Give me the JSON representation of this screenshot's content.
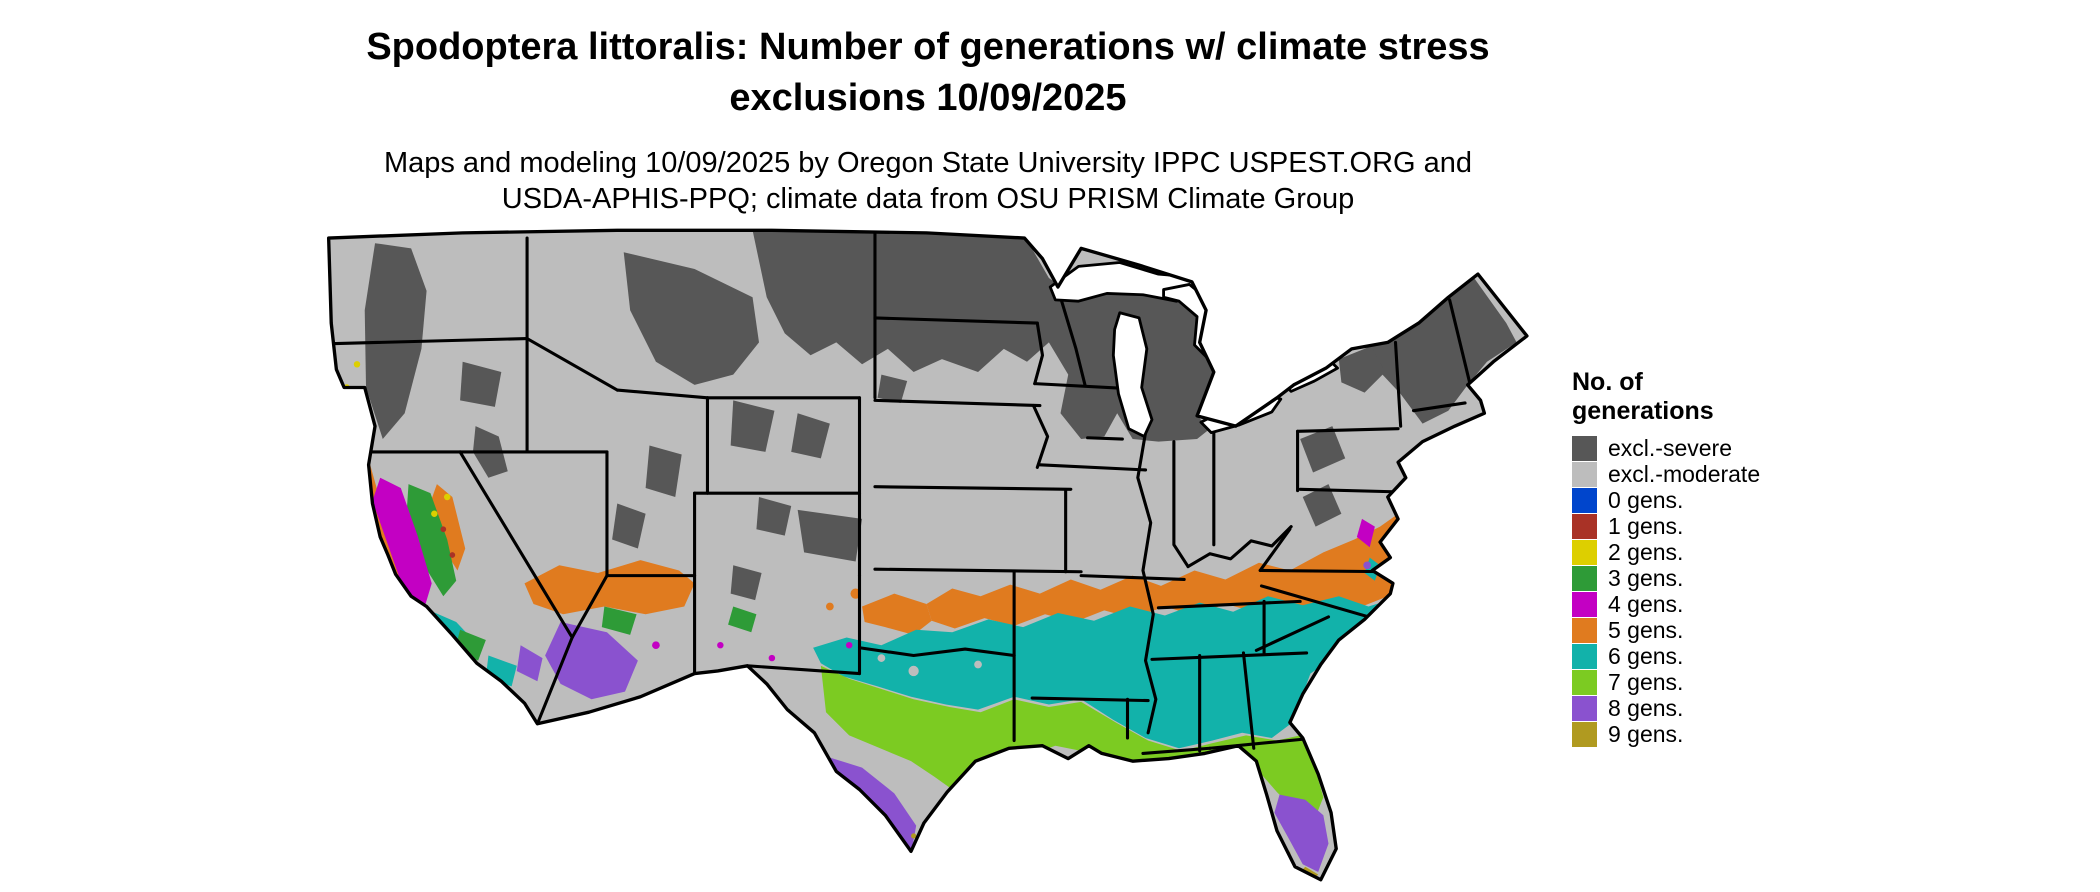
{
  "title": {
    "line1": "Spodoptera littoralis: Number of generations w/ climate stress",
    "line2": "exclusions 10/09/2025"
  },
  "subtitle": {
    "line1": "Maps and modeling 10/09/2025 by Oregon State University IPPC USPEST.ORG and",
    "line2": "USDA-APHIS-PPQ; climate data from OSU PRISM Climate Group"
  },
  "legend": {
    "title_line1": "No. of",
    "title_line2": "generations",
    "items": [
      {
        "key": "excl-severe",
        "label": "excl.-severe",
        "color": "#575757"
      },
      {
        "key": "excl-moderate",
        "label": "excl.-moderate",
        "color": "#bdbdbd"
      },
      {
        "key": "gens-0",
        "label": "0 gens.",
        "color": "#0045cc"
      },
      {
        "key": "gens-1",
        "label": "1 gens.",
        "color": "#a93226"
      },
      {
        "key": "gens-2",
        "label": "2 gens.",
        "color": "#ddcf00"
      },
      {
        "key": "gens-3",
        "label": "3 gens.",
        "color": "#2e9b37"
      },
      {
        "key": "gens-4",
        "label": "4 gens.",
        "color": "#c300c3"
      },
      {
        "key": "gens-5",
        "label": "5 gens.",
        "color": "#e07b1f"
      },
      {
        "key": "gens-6",
        "label": "6 gens.",
        "color": "#12b2aa"
      },
      {
        "key": "gens-7",
        "label": "7 gens.",
        "color": "#7ccb22"
      },
      {
        "key": "gens-8",
        "label": "8 gens.",
        "color": "#8a52cf"
      },
      {
        "key": "gens-9",
        "label": "9 gens.",
        "color": "#b09a20"
      }
    ]
  }
}
